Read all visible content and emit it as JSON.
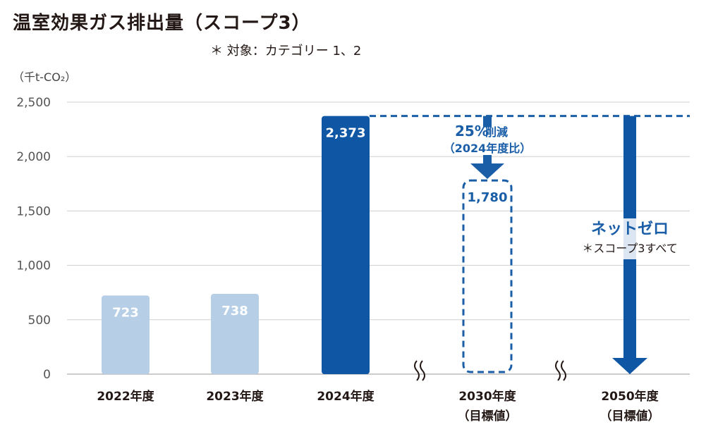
{
  "title": "温室効果ガス排出量（スコープ3）",
  "subtitle": "＊ 対象：カテゴリー 1、2",
  "unit": "（千t-CO₂）",
  "colors": {
    "light_bar": "#b6cfe6",
    "dark_bar": "#0f56a5",
    "accent": "#1a5ea8",
    "grid": "#cfcfcf"
  },
  "chart_data": {
    "type": "bar",
    "categories": [
      "2022年度",
      "2023年度",
      "2024年度",
      "2030年度",
      "2050年度"
    ],
    "category_sublabels": [
      "",
      "",
      "",
      "（目標値）",
      "（目標値）"
    ],
    "values": [
      723,
      738,
      2373,
      1780,
      null
    ],
    "value_labels": [
      "723",
      "738",
      "2,373",
      "1,780",
      ""
    ],
    "yticks": [
      0,
      500,
      1000,
      1500,
      2000,
      2500
    ],
    "ytick_labels": [
      "0",
      "500",
      "1,000",
      "1,500",
      "2,000",
      "2,500"
    ],
    "ylim": [
      0,
      2500
    ],
    "grid": true,
    "annotations": {
      "reduction_pct": "25%",
      "reduction_word": "削減",
      "reduction_basis": "（2024年度比）",
      "net_zero": "ネットゼロ",
      "net_zero_scope": "＊スコープ3すべて"
    }
  }
}
